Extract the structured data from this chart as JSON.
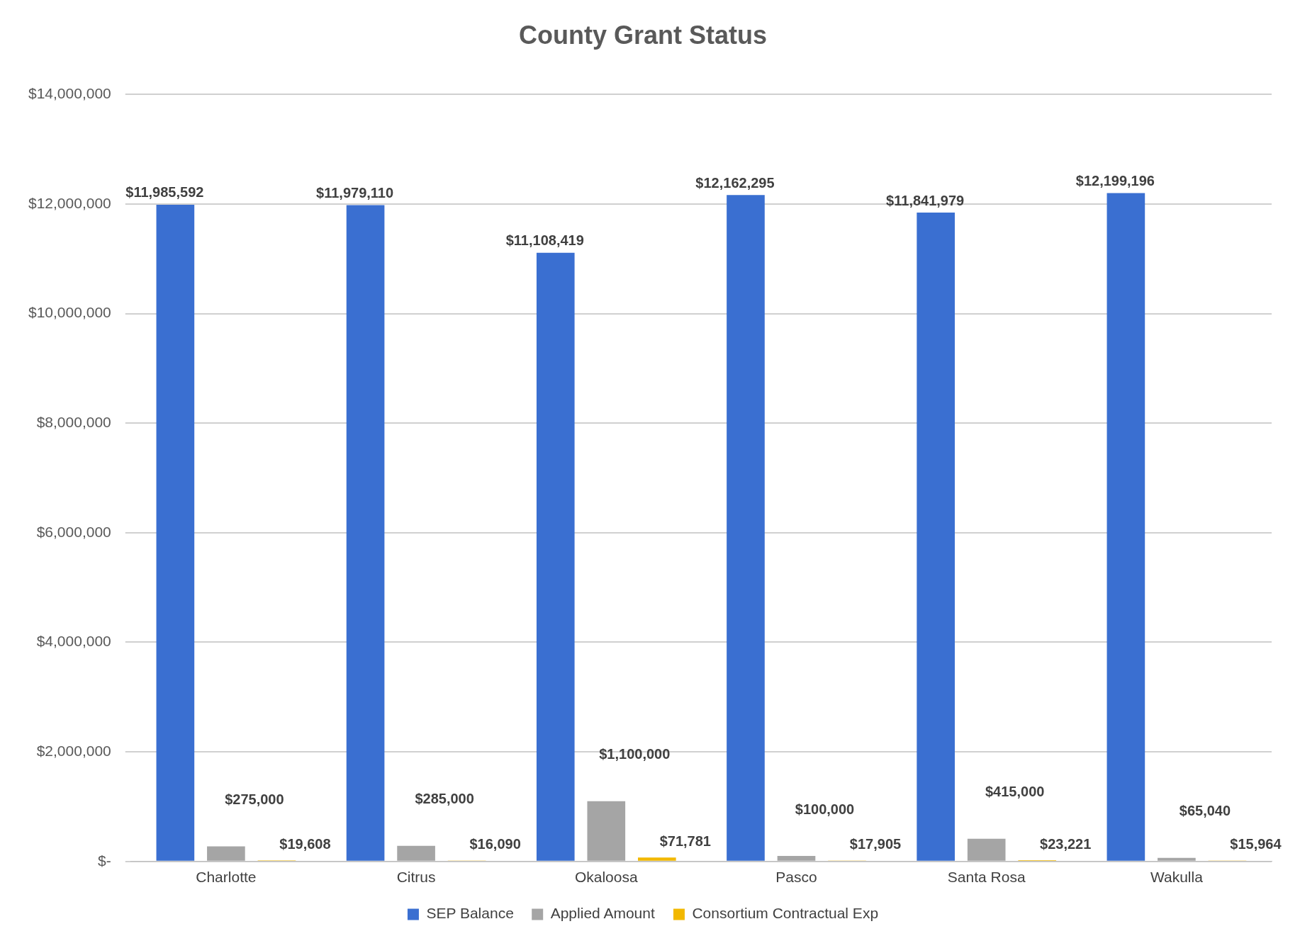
{
  "chart_data": {
    "type": "bar",
    "title": "County Grant Status",
    "categories": [
      "Charlotte",
      "Citrus",
      "Okaloosa",
      "Pasco",
      "Santa Rosa",
      "Wakulla"
    ],
    "series": [
      {
        "name": "SEP Balance",
        "color": "#3a6fd1",
        "values": [
          11985592,
          11979110,
          11108419,
          12162295,
          11841979,
          12199196
        ],
        "value_labels": [
          "$11,985,592",
          "$11,979,110",
          "$11,108,419",
          "$12,162,295",
          "$11,841,979",
          "$12,199,196"
        ]
      },
      {
        "name": "Applied Amount",
        "color": "#a5a5a5",
        "values": [
          275000,
          285000,
          1100000,
          100000,
          415000,
          65040
        ],
        "value_labels": [
          "$275,000",
          "$285,000",
          "$1,100,000",
          "$100,000",
          "$415,000",
          "$65,040"
        ]
      },
      {
        "name": "Consortium Contractual Exp",
        "color": "#f2b800",
        "values": [
          19608,
          16090,
          71781,
          17905,
          23221,
          15964
        ],
        "value_labels": [
          "$19,608",
          "$16,090",
          "$71,781",
          "$17,905",
          "$23,221",
          "$15,964"
        ]
      }
    ],
    "ylim": [
      0,
      14000000
    ],
    "yticks": [
      {
        "value": 0,
        "label": "$-"
      },
      {
        "value": 2000000,
        "label": "$2,000,000"
      },
      {
        "value": 4000000,
        "label": "$4,000,000"
      },
      {
        "value": 6000000,
        "label": "$6,000,000"
      },
      {
        "value": 8000000,
        "label": "$8,000,000"
      },
      {
        "value": 10000000,
        "label": "$10,000,000"
      },
      {
        "value": 12000000,
        "label": "$12,000,000"
      },
      {
        "value": 14000000,
        "label": "$14,000,000"
      }
    ],
    "grid": "y",
    "legend": "bottom"
  }
}
